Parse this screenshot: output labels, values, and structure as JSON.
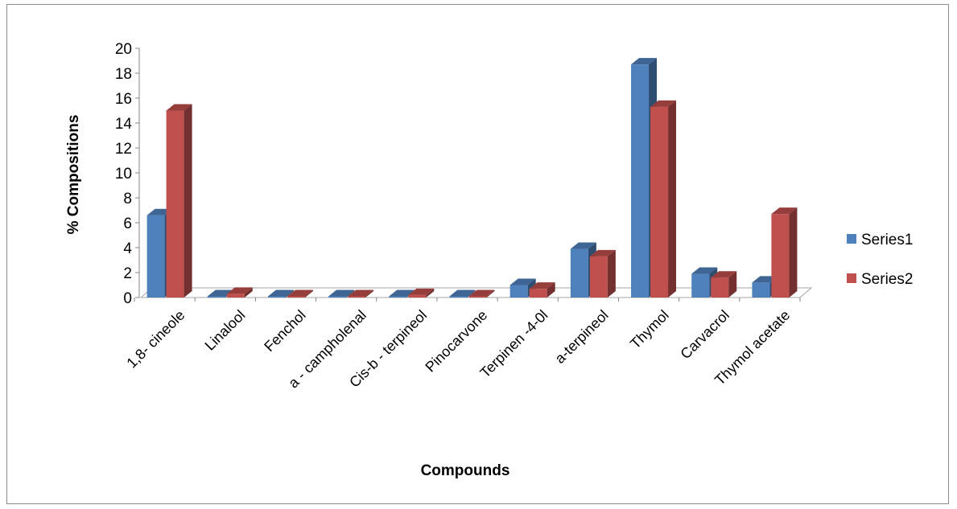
{
  "chart_data": {
    "type": "bar",
    "title": "",
    "xlabel": "Compounds",
    "ylabel": "% Compositions",
    "ylim": [
      0,
      20
    ],
    "yticks": [
      "0",
      "2",
      "4",
      "6",
      "8",
      "10",
      "12",
      "14",
      "16",
      "18",
      "20"
    ],
    "grid": false,
    "legend_position": "right",
    "categories": [
      "1,8- cineole",
      "Linalool",
      "Fenchol",
      "a - campholenal",
      "Cis-b - terpineol",
      "Pinocarvone",
      "Terpinen -4-0l",
      "a-terpineol",
      "Thymol",
      "Carvacrol",
      "Thymol acetate"
    ],
    "series": [
      {
        "name": "Series1",
        "color": "#4f81bd",
        "values": [
          6.6,
          0.1,
          0.1,
          0.1,
          0.1,
          0.1,
          1.0,
          3.9,
          18.7,
          1.9,
          1.2
        ]
      },
      {
        "name": "Series2",
        "color": "#c0504d",
        "values": [
          15.0,
          0.3,
          0.1,
          0.1,
          0.2,
          0.1,
          0.7,
          3.3,
          15.3,
          1.6,
          6.7
        ]
      }
    ]
  }
}
